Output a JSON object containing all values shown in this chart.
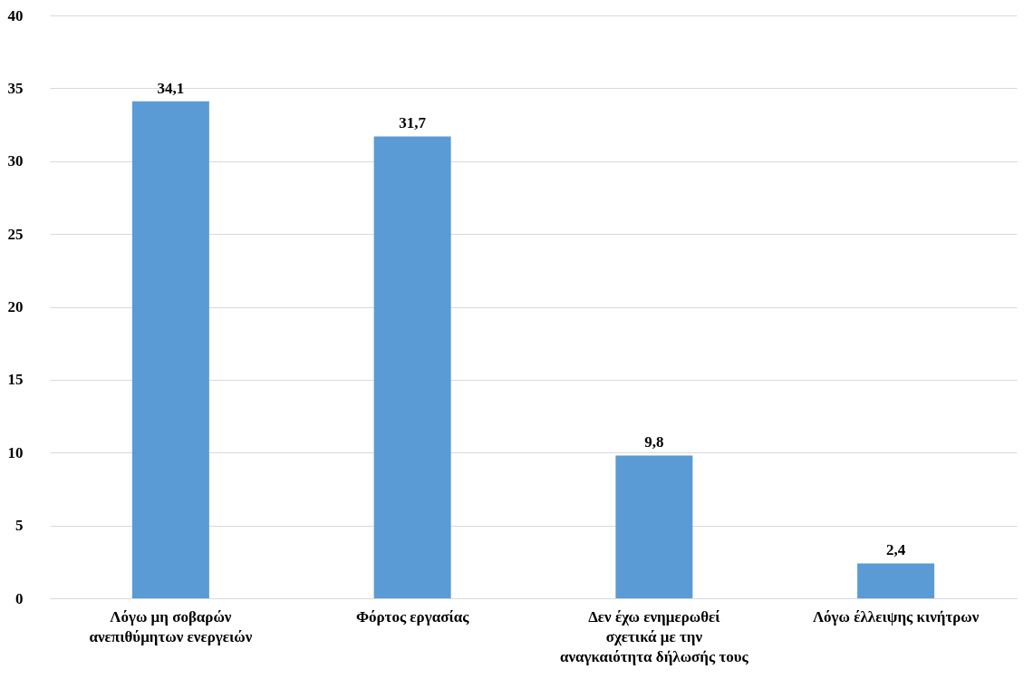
{
  "chart_data": {
    "type": "bar",
    "categories": [
      "Λόγω μη σοβαρών ανεπιθύμητων ενεργειών",
      "Φόρτος εργασίας",
      "Δεν έχω ενημερωθεί σχετικά με την αναγκαιότητα δήλωσής τους",
      "Λόγω έλλειψης κινήτρων"
    ],
    "values": [
      34.1,
      31.7,
      9.8,
      2.4
    ],
    "value_labels": [
      "34,1",
      "31,7",
      "9,8",
      "2,4"
    ],
    "color": "#5b9bd5",
    "ylim": [
      0,
      40
    ],
    "yticks": [
      0,
      5,
      10,
      15,
      20,
      25,
      30,
      35,
      40
    ],
    "grid": "y"
  }
}
